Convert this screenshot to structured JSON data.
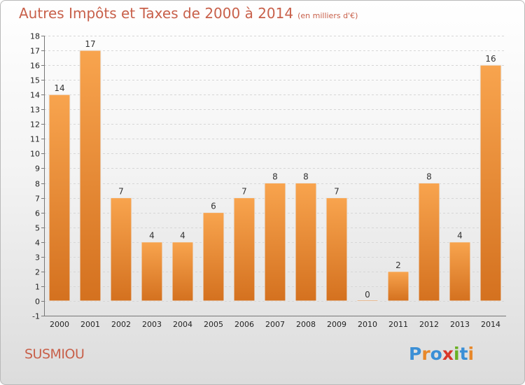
{
  "title": "Autres Impôts et Taxes de 2000 à 2014",
  "subtitle": "(en milliers d'€)",
  "commune": "SUSMIOU",
  "logo": {
    "text": "Proxiti",
    "colors": [
      "#3b8fd6",
      "#e8882a",
      "#3b8fd6",
      "#d9372a",
      "#6ab023",
      "#3b8fd6",
      "#e8882a"
    ]
  },
  "colors": {
    "bar_light": "#f8a44e",
    "bar_dark": "#d4711f",
    "title": "#c8604a"
  },
  "chart_data": {
    "type": "bar",
    "categories": [
      "2000",
      "2001",
      "2002",
      "2003",
      "2004",
      "2005",
      "2006",
      "2007",
      "2008",
      "2009",
      "2010",
      "2011",
      "2012",
      "2013",
      "2014"
    ],
    "values": [
      14,
      17,
      7,
      4,
      4,
      6,
      7,
      8,
      8,
      7,
      0,
      2,
      8,
      4,
      16
    ],
    "data_labels": [
      "14",
      "17",
      "7",
      "4",
      "4",
      "6",
      "7",
      "8",
      "8",
      "7",
      "0",
      "2",
      "8",
      "4",
      "16"
    ],
    "ylim": [
      -1,
      18
    ],
    "yticks": [
      -1,
      0,
      1,
      2,
      3,
      4,
      5,
      6,
      7,
      8,
      9,
      10,
      11,
      12,
      13,
      14,
      15,
      16,
      17,
      18
    ],
    "grid": true
  }
}
